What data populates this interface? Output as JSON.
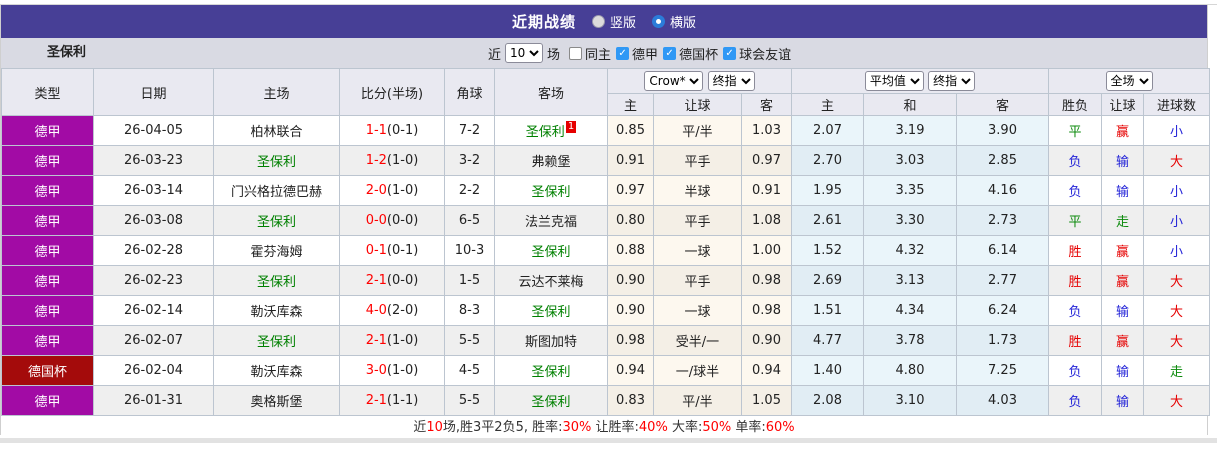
{
  "title_bar": {
    "title": "近期战绩",
    "view_options": [
      {
        "key": "vertical",
        "label": "竖版",
        "selected": false
      },
      {
        "key": "horizontal",
        "label": "横版",
        "selected": true
      }
    ]
  },
  "filter_bar": {
    "team": "圣保利",
    "recent_label": "近",
    "recent_count": "10",
    "unit_label": "场",
    "filters": [
      {
        "key": "same-home",
        "label": "同主",
        "checked": false
      },
      {
        "key": "bundesliga",
        "label": "德甲",
        "checked": true
      },
      {
        "key": "dfb-pokal",
        "label": "德国杯",
        "checked": true
      },
      {
        "key": "club-friendly",
        "label": "球会友谊",
        "checked": true
      }
    ]
  },
  "table": {
    "selectors": {
      "company": "Crow*",
      "company_stage": "终指",
      "average": "平均值",
      "average_stage": "终指",
      "scope": "全场"
    },
    "columns": [
      "类型",
      "日期",
      "主场",
      "比分(半场)",
      "角球",
      "客场"
    ],
    "sub_headers": [
      "主",
      "让球",
      "客",
      "主",
      "和",
      "客",
      "胜负",
      "让球",
      "进球数"
    ],
    "rows": [
      {
        "league": "德甲",
        "league_type": "league",
        "date": "26-04-05",
        "home": "柏林联合",
        "home_focus": false,
        "score": "1-1",
        "half": "(0-1)",
        "corners": "7-2",
        "away": "圣保利",
        "away_focus": true,
        "away_badge": "1",
        "crow": [
          "0.85",
          "平/半",
          "1.03"
        ],
        "avg": [
          "2.07",
          "3.19",
          "3.90"
        ],
        "results": [
          [
            "平",
            "green"
          ],
          [
            "赢",
            "red"
          ],
          [
            "小",
            "blue"
          ]
        ]
      },
      {
        "league": "德甲",
        "league_type": "league",
        "date": "26-03-23",
        "home": "圣保利",
        "home_focus": true,
        "score": "1-2",
        "half": "(1-0)",
        "corners": "3-2",
        "away": "弗赖堡",
        "away_focus": false,
        "away_badge": "",
        "crow": [
          "0.91",
          "平手",
          "0.97"
        ],
        "avg": [
          "2.70",
          "3.03",
          "2.85"
        ],
        "results": [
          [
            "负",
            "blue"
          ],
          [
            "输",
            "blue"
          ],
          [
            "大",
            "red"
          ]
        ]
      },
      {
        "league": "德甲",
        "league_type": "league",
        "date": "26-03-14",
        "home": "门兴格拉德巴赫",
        "home_focus": false,
        "score": "2-0",
        "half": "(1-0)",
        "corners": "2-2",
        "away": "圣保利",
        "away_focus": true,
        "away_badge": "",
        "crow": [
          "0.97",
          "半球",
          "0.91"
        ],
        "avg": [
          "1.95",
          "3.35",
          "4.16"
        ],
        "results": [
          [
            "负",
            "blue"
          ],
          [
            "输",
            "blue"
          ],
          [
            "小",
            "blue"
          ]
        ]
      },
      {
        "league": "德甲",
        "league_type": "league",
        "date": "26-03-08",
        "home": "圣保利",
        "home_focus": true,
        "score": "0-0",
        "half": "(0-0)",
        "corners": "6-5",
        "away": "法兰克福",
        "away_focus": false,
        "away_badge": "",
        "crow": [
          "0.80",
          "平手",
          "1.08"
        ],
        "avg": [
          "2.61",
          "3.30",
          "2.73"
        ],
        "results": [
          [
            "平",
            "green"
          ],
          [
            "走",
            "green"
          ],
          [
            "小",
            "blue"
          ]
        ]
      },
      {
        "league": "德甲",
        "league_type": "league",
        "date": "26-02-28",
        "home": "霍芬海姆",
        "home_focus": false,
        "score": "0-1",
        "half": "(0-1)",
        "corners": "10-3",
        "away": "圣保利",
        "away_focus": true,
        "away_badge": "",
        "crow": [
          "0.88",
          "一球",
          "1.00"
        ],
        "avg": [
          "1.52",
          "4.32",
          "6.14"
        ],
        "results": [
          [
            "胜",
            "red"
          ],
          [
            "赢",
            "red"
          ],
          [
            "小",
            "blue"
          ]
        ]
      },
      {
        "league": "德甲",
        "league_type": "league",
        "date": "26-02-23",
        "home": "圣保利",
        "home_focus": true,
        "score": "2-1",
        "half": "(0-0)",
        "corners": "1-5",
        "away": "云达不莱梅",
        "away_focus": false,
        "away_badge": "",
        "crow": [
          "0.90",
          "平手",
          "0.98"
        ],
        "avg": [
          "2.69",
          "3.13",
          "2.77"
        ],
        "results": [
          [
            "胜",
            "red"
          ],
          [
            "赢",
            "red"
          ],
          [
            "大",
            "red"
          ]
        ]
      },
      {
        "league": "德甲",
        "league_type": "league",
        "date": "26-02-14",
        "home": "勒沃库森",
        "home_focus": false,
        "score": "4-0",
        "half": "(2-0)",
        "corners": "8-3",
        "away": "圣保利",
        "away_focus": true,
        "away_badge": "",
        "crow": [
          "0.90",
          "一球",
          "0.98"
        ],
        "avg": [
          "1.51",
          "4.34",
          "6.24"
        ],
        "results": [
          [
            "负",
            "blue"
          ],
          [
            "输",
            "blue"
          ],
          [
            "大",
            "red"
          ]
        ]
      },
      {
        "league": "德甲",
        "league_type": "league",
        "date": "26-02-07",
        "home": "圣保利",
        "home_focus": true,
        "score": "2-1",
        "half": "(1-0)",
        "corners": "5-5",
        "away": "斯图加特",
        "away_focus": false,
        "away_badge": "",
        "crow": [
          "0.98",
          "受半/一",
          "0.90"
        ],
        "avg": [
          "4.77",
          "3.78",
          "1.73"
        ],
        "results": [
          [
            "胜",
            "red"
          ],
          [
            "赢",
            "red"
          ],
          [
            "大",
            "red"
          ]
        ]
      },
      {
        "league": "德国杯",
        "league_type": "cup",
        "date": "26-02-04",
        "home": "勒沃库森",
        "home_focus": false,
        "score": "3-0",
        "half": "(1-0)",
        "corners": "4-5",
        "away": "圣保利",
        "away_focus": true,
        "away_badge": "",
        "crow": [
          "0.94",
          "一/球半",
          "0.94"
        ],
        "avg": [
          "1.40",
          "4.80",
          "7.25"
        ],
        "results": [
          [
            "负",
            "blue"
          ],
          [
            "输",
            "blue"
          ],
          [
            "走",
            "green"
          ]
        ]
      },
      {
        "league": "德甲",
        "league_type": "league",
        "date": "26-01-31",
        "home": "奥格斯堡",
        "home_focus": false,
        "score": "2-1",
        "half": "(1-1)",
        "corners": "5-5",
        "away": "圣保利",
        "away_focus": true,
        "away_badge": "",
        "crow": [
          "0.83",
          "平/半",
          "1.05"
        ],
        "avg": [
          "2.08",
          "3.10",
          "4.03"
        ],
        "results": [
          [
            "负",
            "blue"
          ],
          [
            "输",
            "blue"
          ],
          [
            "大",
            "red"
          ]
        ]
      }
    ]
  },
  "summary": {
    "segments": [
      [
        "近",
        false
      ],
      [
        "10",
        true
      ],
      [
        "场,胜3平2负5, 胜率:",
        false
      ],
      [
        "30%",
        true
      ],
      [
        " 让胜率:",
        false
      ],
      [
        "40%",
        true
      ],
      [
        " 大率:",
        false
      ],
      [
        "50%",
        true
      ],
      [
        " 单率:",
        false
      ],
      [
        "60%",
        true
      ]
    ]
  },
  "colors": {
    "titlebar_purple": "#473f96",
    "league_purple": "#a20ba5",
    "cup_red": "#a40b0b",
    "focus_team_green": "#008000",
    "win_red": "#e60000",
    "draw_green": "#0b8a0b",
    "lose_blue": "#2424d8"
  }
}
